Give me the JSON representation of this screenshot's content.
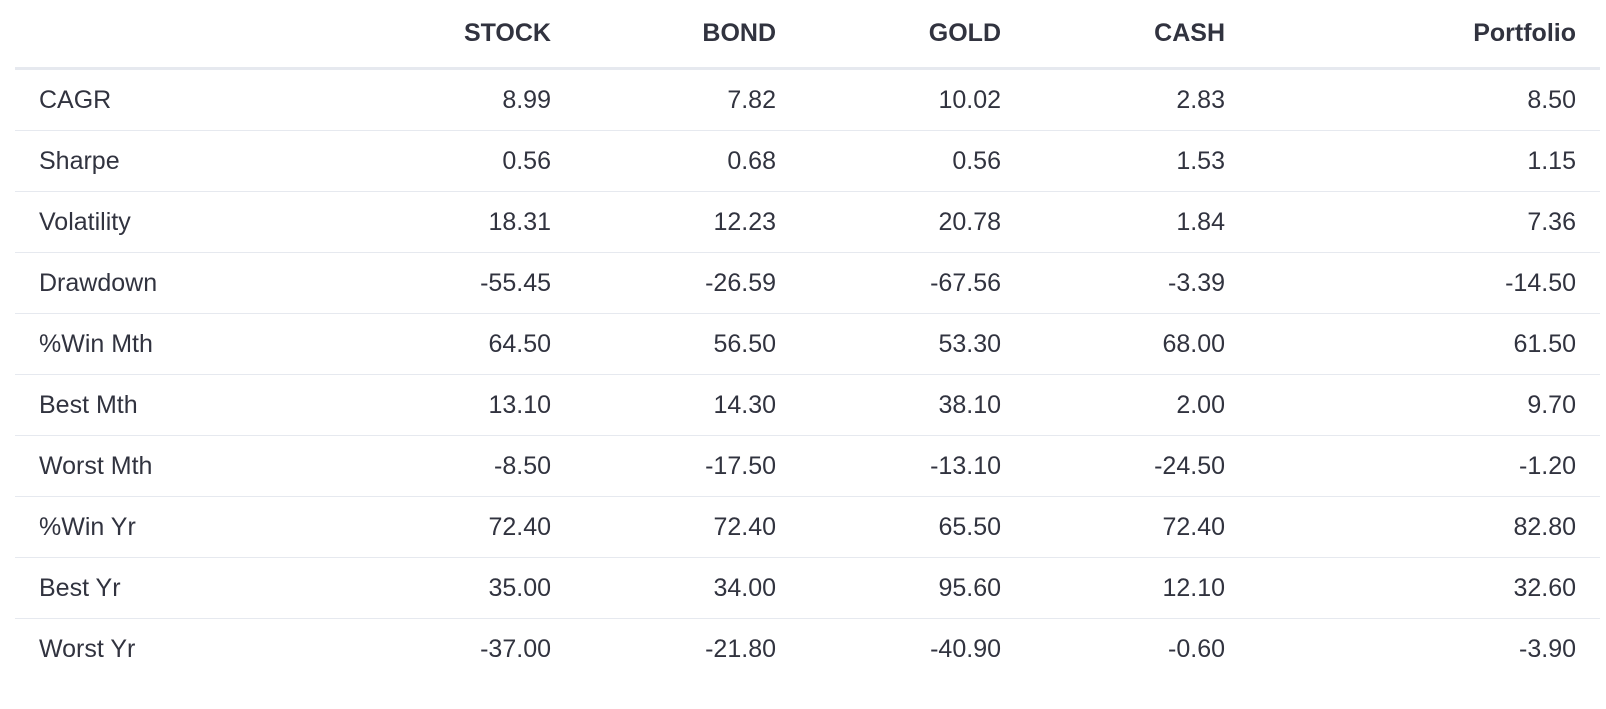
{
  "table": {
    "columns": [
      "",
      "STOCK",
      "BOND",
      "GOLD",
      "CASH",
      "Portfolio"
    ],
    "rows": [
      {
        "label": "CAGR",
        "values": [
          "8.99",
          "7.82",
          "10.02",
          "2.83",
          "8.50"
        ]
      },
      {
        "label": "Sharpe",
        "values": [
          "0.56",
          "0.68",
          "0.56",
          "1.53",
          "1.15"
        ]
      },
      {
        "label": "Volatility",
        "values": [
          "18.31",
          "12.23",
          "20.78",
          "1.84",
          "7.36"
        ]
      },
      {
        "label": "Drawdown",
        "values": [
          "-55.45",
          "-26.59",
          "-67.56",
          "-3.39",
          "-14.50"
        ]
      },
      {
        "label": "%Win Mth",
        "values": [
          "64.50",
          "56.50",
          "53.30",
          "68.00",
          "61.50"
        ]
      },
      {
        "label": "Best Mth",
        "values": [
          "13.10",
          "14.30",
          "38.10",
          "2.00",
          "9.70"
        ]
      },
      {
        "label": "Worst Mth",
        "values": [
          "-8.50",
          "-17.50",
          "-13.10",
          "-24.50",
          "-1.20"
        ]
      },
      {
        "label": "%Win Yr",
        "values": [
          "72.40",
          "72.40",
          "65.50",
          "72.40",
          "82.80"
        ]
      },
      {
        "label": "Best Yr",
        "values": [
          "35.00",
          "34.00",
          "95.60",
          "12.10",
          "32.60"
        ]
      },
      {
        "label": "Worst Yr",
        "values": [
          "-37.00",
          "-21.80",
          "-40.90",
          "-0.60",
          "-3.90"
        ]
      }
    ]
  },
  "colors": {
    "text": "#31333f",
    "border": "#e6e9ef",
    "background": "#ffffff"
  }
}
